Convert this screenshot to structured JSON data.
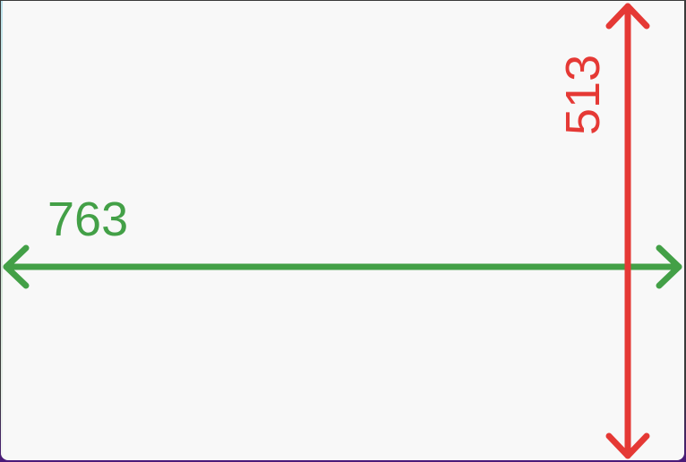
{
  "measurements": {
    "width_label": "763",
    "height_label": "513"
  },
  "colors": {
    "width_arrow": "#43a047",
    "height_arrow": "#e53935",
    "background": "#f8f8f8"
  }
}
